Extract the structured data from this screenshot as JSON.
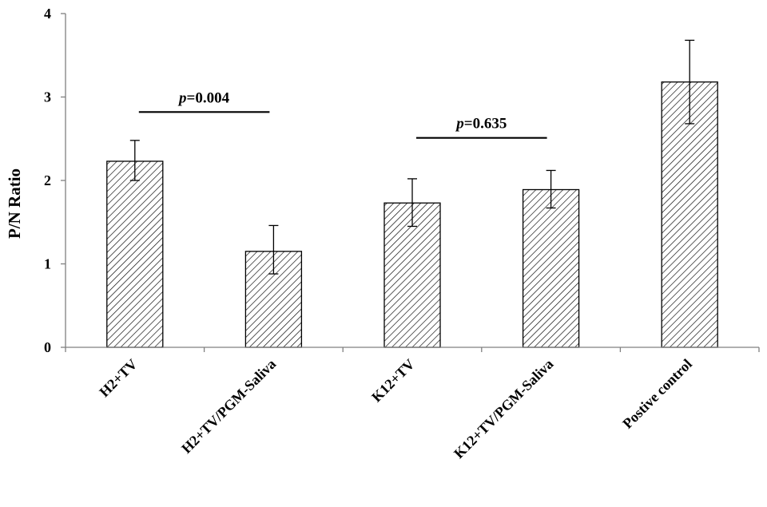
{
  "chart_data": {
    "type": "bar",
    "title": "",
    "xlabel": "",
    "ylabel": "P/N Ratio",
    "ylim": [
      0,
      4
    ],
    "yticks": [
      "0",
      "1",
      "2",
      "3",
      "4"
    ],
    "categories": [
      "H2+TV",
      "H2+TV/PGM-Saliva",
      "K12+TV",
      "K12+TV/PGM-Saliva",
      "Postive control"
    ],
    "values": [
      2.23,
      1.15,
      1.73,
      1.89,
      3.18
    ],
    "error_low": [
      2.0,
      0.88,
      1.45,
      1.67,
      2.68
    ],
    "error_high": [
      2.48,
      1.46,
      2.02,
      2.12,
      3.68
    ],
    "bar_fill": "diagonal-hatch",
    "grid": false,
    "legend": "none",
    "annotations": [
      {
        "italic": "p",
        "text": "=0.004",
        "from": 0,
        "to": 1,
        "y": 2.82
      },
      {
        "italic": "p",
        "text": "=0.635",
        "from": 2,
        "to": 3,
        "y": 2.51
      }
    ]
  },
  "colors": {
    "axis": "#808080",
    "bar_stroke": "#000000",
    "hatch": "#000000",
    "background": "#ffffff"
  }
}
